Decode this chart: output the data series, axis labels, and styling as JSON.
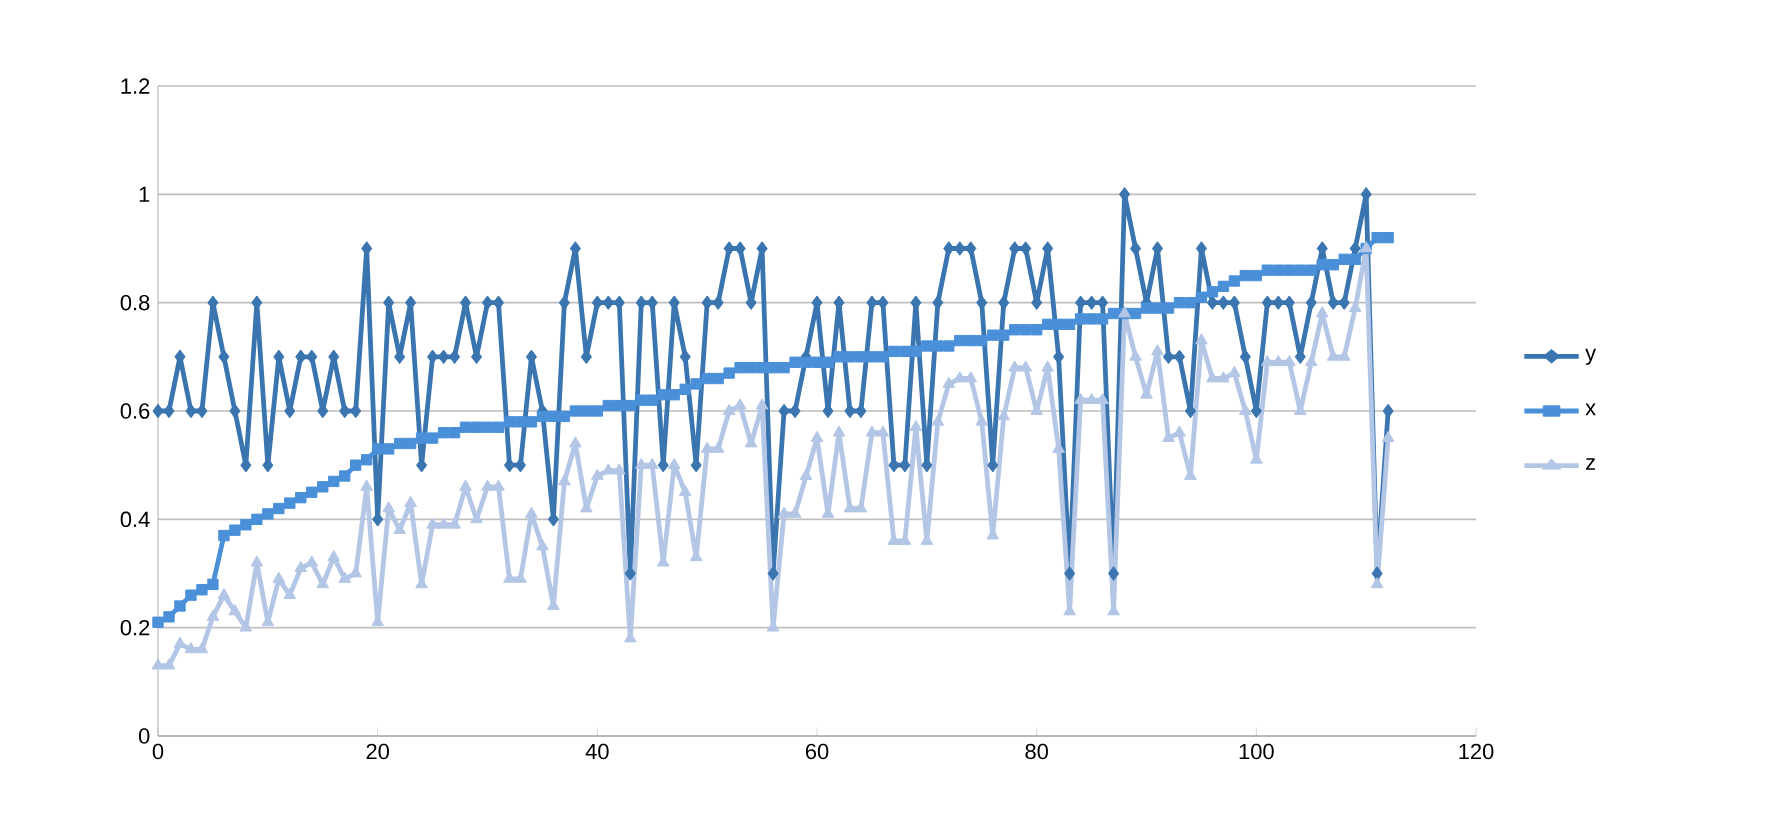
{
  "chart_data": {
    "type": "line",
    "xlim": [
      0,
      120
    ],
    "xticks": [
      0,
      20,
      40,
      60,
      80,
      100,
      120
    ],
    "ylim": [
      0,
      1.2
    ],
    "yticks": [
      0,
      0.2,
      0.4,
      0.6,
      0.8,
      1,
      1.2
    ],
    "grid": "y",
    "legend": "right",
    "line_style": "solid",
    "x": [
      0,
      1,
      2,
      3,
      4,
      5,
      6,
      7,
      8,
      9,
      10,
      11,
      12,
      13,
      14,
      15,
      16,
      17,
      18,
      19,
      20,
      21,
      22,
      23,
      24,
      25,
      26,
      27,
      28,
      29,
      30,
      31,
      32,
      33,
      34,
      35,
      36,
      37,
      38,
      39,
      40,
      41,
      42,
      43,
      44,
      45,
      46,
      47,
      48,
      49,
      50,
      51,
      52,
      53,
      54,
      55,
      56,
      57,
      58,
      59,
      60,
      61,
      62,
      63,
      64,
      65,
      66,
      67,
      68,
      69,
      70,
      71,
      72,
      73,
      74,
      75,
      76,
      77,
      78,
      79,
      80,
      81,
      82,
      83,
      84,
      85,
      86,
      87,
      88,
      89,
      90,
      91,
      92,
      93,
      94,
      95,
      96,
      97,
      98,
      99,
      100,
      101,
      102,
      103,
      104,
      105,
      106,
      107,
      108,
      109,
      110,
      111,
      112
    ],
    "series": [
      {
        "name": "y",
        "color": "#3a75b0",
        "marker": "diamond",
        "values": [
          0.6,
          0.6,
          0.7,
          0.6,
          0.6,
          0.8,
          0.7,
          0.6,
          0.5,
          0.8,
          0.5,
          0.7,
          0.6,
          0.7,
          0.7,
          0.6,
          0.7,
          0.6,
          0.6,
          0.9,
          0.4,
          0.8,
          0.7,
          0.8,
          0.5,
          0.7,
          0.7,
          0.7,
          0.8,
          0.7,
          0.8,
          0.8,
          0.5,
          0.5,
          0.7,
          0.6,
          0.4,
          0.8,
          0.9,
          0.7,
          0.8,
          0.8,
          0.8,
          0.3,
          0.8,
          0.8,
          0.5,
          0.8,
          0.7,
          0.5,
          0.8,
          0.8,
          0.9,
          0.9,
          0.8,
          0.9,
          0.3,
          0.6,
          0.6,
          0.7,
          0.8,
          0.6,
          0.8,
          0.6,
          0.6,
          0.8,
          0.8,
          0.5,
          0.5,
          0.8,
          0.5,
          0.8,
          0.9,
          0.9,
          0.9,
          0.8,
          0.5,
          0.8,
          0.9,
          0.9,
          0.8,
          0.9,
          0.7,
          0.3,
          0.8,
          0.8,
          0.8,
          0.3,
          1.0,
          0.9,
          0.8,
          0.9,
          0.7,
          0.7,
          0.6,
          0.9,
          0.8,
          0.8,
          0.8,
          0.7,
          0.6,
          0.8,
          0.8,
          0.8,
          0.7,
          0.8,
          0.9,
          0.8,
          0.8,
          0.9,
          1.0,
          0.3,
          0.6
        ]
      },
      {
        "name": "x",
        "color": "#4a90d9",
        "marker": "square",
        "values": [
          0.21,
          0.22,
          0.24,
          0.26,
          0.27,
          0.28,
          0.37,
          0.38,
          0.39,
          0.4,
          0.41,
          0.42,
          0.43,
          0.44,
          0.45,
          0.46,
          0.47,
          0.48,
          0.5,
          0.51,
          0.53,
          0.53,
          0.54,
          0.54,
          0.55,
          0.55,
          0.56,
          0.56,
          0.57,
          0.57,
          0.57,
          0.57,
          0.58,
          0.58,
          0.58,
          0.59,
          0.59,
          0.59,
          0.6,
          0.6,
          0.6,
          0.61,
          0.61,
          0.61,
          0.62,
          0.62,
          0.63,
          0.63,
          0.64,
          0.65,
          0.66,
          0.66,
          0.67,
          0.68,
          0.68,
          0.68,
          0.68,
          0.68,
          0.69,
          0.69,
          0.69,
          0.69,
          0.7,
          0.7,
          0.7,
          0.7,
          0.7,
          0.71,
          0.71,
          0.71,
          0.72,
          0.72,
          0.72,
          0.73,
          0.73,
          0.73,
          0.74,
          0.74,
          0.75,
          0.75,
          0.75,
          0.76,
          0.76,
          0.76,
          0.77,
          0.77,
          0.77,
          0.78,
          0.78,
          0.78,
          0.79,
          0.79,
          0.79,
          0.8,
          0.8,
          0.81,
          0.82,
          0.83,
          0.84,
          0.85,
          0.85,
          0.86,
          0.86,
          0.86,
          0.86,
          0.86,
          0.87,
          0.87,
          0.88,
          0.88,
          0.9,
          0.92,
          0.92
        ]
      },
      {
        "name": "z",
        "color": "#b3c6e6",
        "marker": "triangle",
        "values": [
          0.13,
          0.13,
          0.17,
          0.16,
          0.16,
          0.22,
          0.26,
          0.23,
          0.2,
          0.32,
          0.21,
          0.29,
          0.26,
          0.31,
          0.32,
          0.28,
          0.33,
          0.29,
          0.3,
          0.46,
          0.21,
          0.42,
          0.38,
          0.43,
          0.28,
          0.39,
          0.39,
          0.39,
          0.46,
          0.4,
          0.46,
          0.46,
          0.29,
          0.29,
          0.41,
          0.35,
          0.24,
          0.47,
          0.54,
          0.42,
          0.48,
          0.49,
          0.49,
          0.18,
          0.5,
          0.5,
          0.32,
          0.5,
          0.45,
          0.33,
          0.53,
          0.53,
          0.6,
          0.61,
          0.54,
          0.61,
          0.2,
          0.41,
          0.41,
          0.48,
          0.55,
          0.41,
          0.56,
          0.42,
          0.42,
          0.56,
          0.56,
          0.36,
          0.36,
          0.57,
          0.36,
          0.58,
          0.65,
          0.66,
          0.66,
          0.58,
          0.37,
          0.59,
          0.68,
          0.68,
          0.6,
          0.68,
          0.53,
          0.23,
          0.62,
          0.62,
          0.62,
          0.23,
          0.78,
          0.7,
          0.63,
          0.71,
          0.55,
          0.56,
          0.48,
          0.73,
          0.66,
          0.66,
          0.67,
          0.6,
          0.51,
          0.69,
          0.69,
          0.69,
          0.6,
          0.69,
          0.78,
          0.7,
          0.7,
          0.79,
          0.9,
          0.28,
          0.55
        ]
      }
    ]
  }
}
